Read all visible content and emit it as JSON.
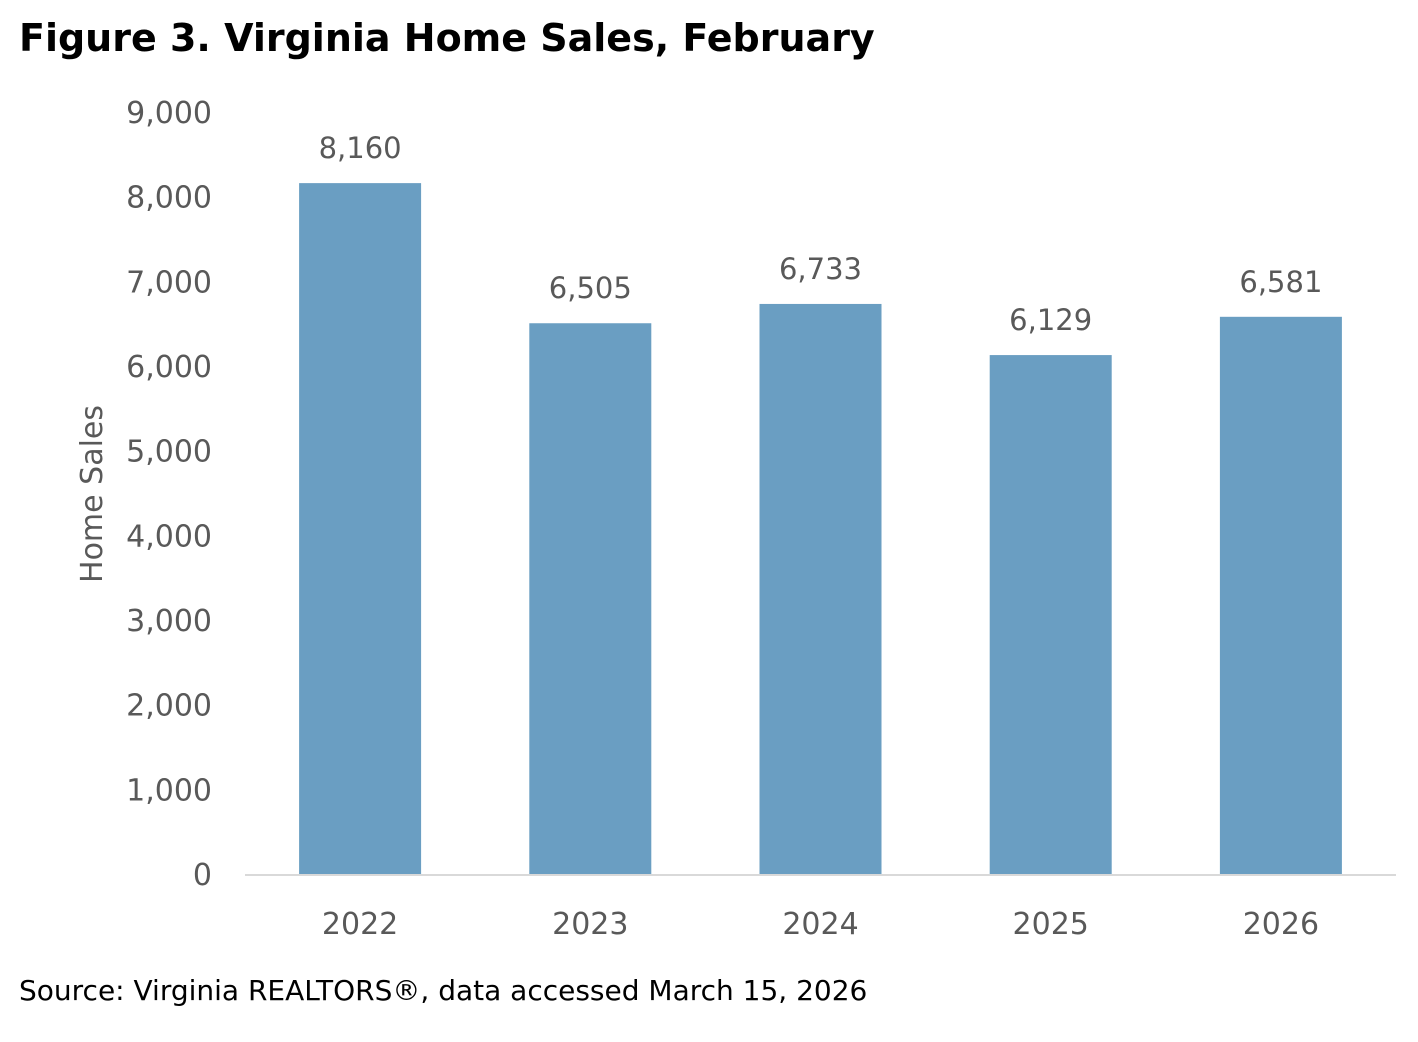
{
  "figure": {
    "title": "Figure 3. Virginia Home Sales, February",
    "source": "Source: Virginia REALTORS®, data accessed March 15, 2026"
  },
  "colors": {
    "bar": "#6a9ec2",
    "text": "#595959",
    "axis": "#d9d9d9"
  },
  "chart_data": {
    "type": "bar",
    "title": "Figure 3. Virginia Home Sales, February",
    "categories": [
      "2022",
      "2023",
      "2024",
      "2025",
      "2026"
    ],
    "values": [
      8160,
      6505,
      6733,
      6129,
      6581
    ],
    "data_labels": [
      "8,160",
      "6,505",
      "6,733",
      "6,129",
      "6,581"
    ],
    "xlabel": "",
    "ylabel": "Home Sales",
    "ylim": [
      0,
      9000
    ],
    "yticks": [
      0,
      1000,
      2000,
      3000,
      4000,
      5000,
      6000,
      7000,
      8000,
      9000
    ],
    "ytick_labels": [
      "0",
      "1,000",
      "2,000",
      "3,000",
      "4,000",
      "5,000",
      "6,000",
      "7,000",
      "8,000",
      "9,000"
    ],
    "grid": false,
    "legend": "none"
  }
}
